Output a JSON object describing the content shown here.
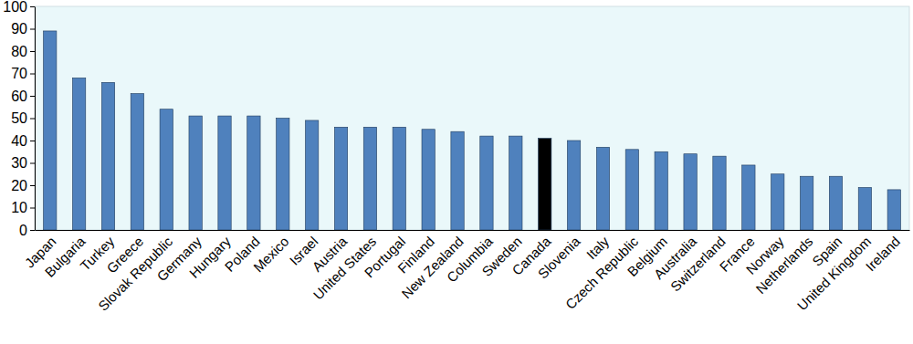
{
  "chart_data": {
    "type": "bar",
    "categories": [
      "Japan",
      "Bulgaria",
      "Turkey",
      "Greece",
      "Slovak Republic",
      "Germany",
      "Hungary",
      "Poland",
      "Mexico",
      "Israel",
      "Austria",
      "United States",
      "Portugal",
      "Finland",
      "New Zealand",
      "Columbia",
      "Sweden",
      "Canada",
      "Slovenia",
      "Italy",
      "Czech Republic",
      "Belgium",
      "Australia",
      "Switzerland",
      "France",
      "Norway",
      "Netherlands",
      "Spain",
      "United Kingdom",
      "Ireland"
    ],
    "values": [
      89,
      68,
      66,
      61,
      54,
      51,
      51,
      51,
      50,
      49,
      46,
      46,
      46,
      45,
      44,
      42,
      42,
      41,
      40,
      37,
      36,
      35,
      34,
      33,
      29,
      25,
      24,
      24,
      19,
      18
    ],
    "colors": [
      "#4f81bd",
      "#4f81bd",
      "#4f81bd",
      "#4f81bd",
      "#4f81bd",
      "#4f81bd",
      "#4f81bd",
      "#4f81bd",
      "#4f81bd",
      "#4f81bd",
      "#4f81bd",
      "#4f81bd",
      "#4f81bd",
      "#4f81bd",
      "#4f81bd",
      "#4f81bd",
      "#4f81bd",
      "#000000",
      "#4f81bd",
      "#4f81bd",
      "#4f81bd",
      "#4f81bd",
      "#4f81bd",
      "#4f81bd",
      "#4f81bd",
      "#4f81bd",
      "#4f81bd",
      "#4f81bd",
      "#4f81bd",
      "#4f81bd"
    ],
    "ylim": [
      0,
      100
    ],
    "yticks": [
      0,
      10,
      20,
      30,
      40,
      50,
      60,
      70,
      80,
      90,
      100
    ],
    "grid": false
  }
}
